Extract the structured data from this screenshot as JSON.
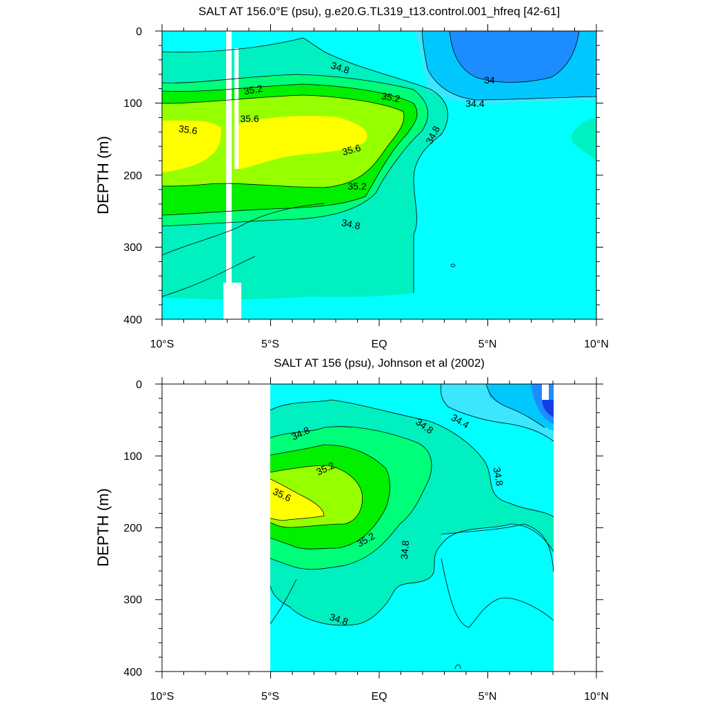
{
  "colors": {
    "c_lt34": "#1c8cff",
    "c_34_344": "#00c8ff",
    "c_344_348": "#3ce6ff",
    "c_348_35": "#00ffff",
    "c_35_352": "#00f0c0",
    "c_352_354": "#00ff78",
    "c_354_356": "#00f000",
    "c_356_358": "#96ff00",
    "c_gt358": "#ffff00",
    "deep_blue": "#1040e0"
  },
  "chart_data": [
    {
      "type": "contour",
      "title": "SALT AT 156.0°E (psu), g.e20.G.TL319_t13.control.001_hfreq [42-61]",
      "ylabel": "DEPTH (m)",
      "xlabel": "",
      "xlim": [
        -10,
        10
      ],
      "ylim": [
        400,
        0
      ],
      "x_ticks": [
        "10°S",
        "5°S",
        "EQ",
        "5°N",
        "10°N"
      ],
      "y_ticks": [
        "0",
        "100",
        "200",
        "300",
        "400"
      ],
      "data_x_range": [
        -10,
        10
      ],
      "contour_labels": [
        "34.8",
        "35.2",
        "35.6",
        "35.6",
        "35.2",
        "35.6",
        "35.2",
        "34.8",
        "34.8",
        "34",
        "34.4"
      ]
    },
    {
      "type": "contour",
      "title": "SALT AT 156 (psu), Johnson et al (2002)",
      "ylabel": "DEPTH (m)",
      "xlabel": "",
      "xlim": [
        -10,
        10
      ],
      "ylim": [
        400,
        0
      ],
      "x_ticks": [
        "10°S",
        "5°S",
        "EQ",
        "5°N",
        "10°N"
      ],
      "y_ticks": [
        "0",
        "100",
        "200",
        "300",
        "400"
      ],
      "data_x_range": [
        -5,
        8
      ],
      "contour_labels": [
        "34.8",
        "34.8",
        "34.4",
        "35.2",
        "34.8",
        "35.6",
        "35.2",
        "34.8",
        "34.8"
      ]
    }
  ]
}
